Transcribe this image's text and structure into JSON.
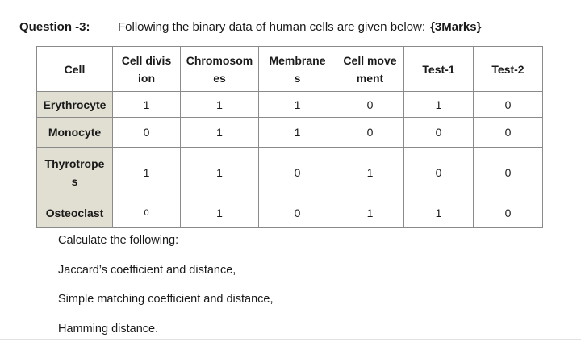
{
  "question": {
    "label": "Question -3:",
    "text": "Following the binary data of human cells are given below:",
    "marks": "{3Marks}"
  },
  "table": {
    "headers": [
      "Cell",
      "Cell divis\nion",
      "Chromosom\nes",
      "Membrane\ns",
      "Cell move\nment",
      "Test-1",
      "Test-2"
    ],
    "rows": [
      {
        "name": "Erythrocyte",
        "values": [
          "1",
          "1",
          "1",
          "0",
          "1",
          "0"
        ]
      },
      {
        "name": "Monocyte",
        "values": [
          "0",
          "1",
          "1",
          "0",
          "0",
          "0"
        ]
      },
      {
        "name": "Thyrotrope\ns",
        "values": [
          "1",
          "1",
          "0",
          "1",
          "0",
          "0"
        ]
      },
      {
        "name": "Osteoclast",
        "values": [
          "0",
          "1",
          "0",
          "1",
          "1",
          "0"
        ]
      }
    ]
  },
  "instructions": [
    "Calculate the following:",
    "Jaccard’s coefficient  and distance,",
    "Simple matching coefficient and distance,",
    "Hamming distance."
  ]
}
